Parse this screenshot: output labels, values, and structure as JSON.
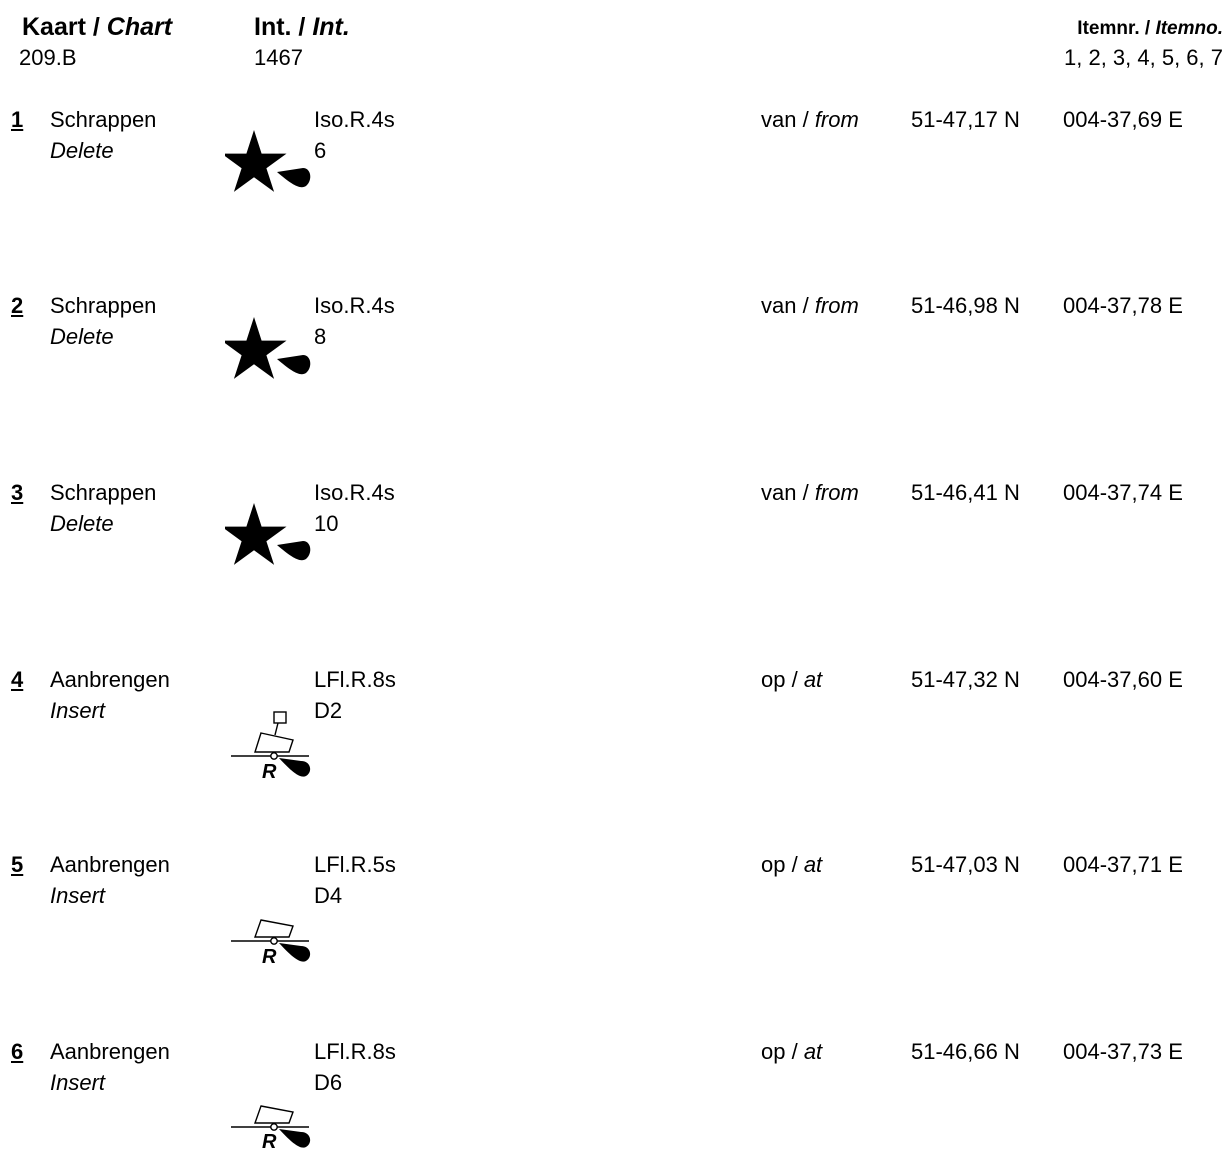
{
  "header": {
    "chart_label": "Kaart / ",
    "chart_label_italic": "Chart",
    "chart_value": "209.B",
    "int_label": "Int. / ",
    "int_label_italic": "Int.",
    "int_value": "1467",
    "itemno_label": "Itemnr. / ",
    "itemno_label_italic": "Itemno.",
    "itemno_value": "1, 2, 3, 4, 5, 6, 7"
  },
  "items": [
    {
      "number": "1",
      "action": "Schrappen",
      "action_en": "Delete",
      "characteristic": "Iso.R.4s",
      "name": "6",
      "position_label": "van / ",
      "position_label_en": "from",
      "lat": "51-47,17 N",
      "lon": "004-37,69 E",
      "symbol": "light-star-icon"
    },
    {
      "number": "2",
      "action": "Schrappen",
      "action_en": "Delete",
      "characteristic": "Iso.R.4s",
      "name": "8",
      "position_label": "van / ",
      "position_label_en": "from",
      "lat": "51-46,98 N",
      "lon": "004-37,78 E",
      "symbol": "light-star-icon"
    },
    {
      "number": "3",
      "action": "Schrappen",
      "action_en": "Delete",
      "characteristic": "Iso.R.4s",
      "name": "10",
      "position_label": "van / ",
      "position_label_en": "from",
      "lat": "51-46,41 N",
      "lon": "004-37,74 E",
      "symbol": "light-star-icon"
    },
    {
      "number": "4",
      "action": "Aanbrengen",
      "action_en": "Insert",
      "characteristic": "LFl.R.8s",
      "name": "D2",
      "position_label": "op / ",
      "position_label_en": "at",
      "lat": "51-47,32 N",
      "lon": "004-37,60 E",
      "symbol": "lit-mooring-buoy-topmark-icon"
    },
    {
      "number": "5",
      "action": "Aanbrengen",
      "action_en": "Insert",
      "characteristic": "LFl.R.5s",
      "name": "D4",
      "position_label": "op / ",
      "position_label_en": "at",
      "lat": "51-47,03 N",
      "lon": "004-37,71 E",
      "symbol": "lit-mooring-buoy-icon"
    },
    {
      "number": "6",
      "action": "Aanbrengen",
      "action_en": "Insert",
      "characteristic": "LFl.R.8s",
      "name": "D6",
      "position_label": "op / ",
      "position_label_en": "at",
      "lat": "51-46,66 N",
      "lon": "004-37,73 E",
      "symbol": "lit-mooring-buoy-icon"
    }
  ],
  "buoy_letter": "R"
}
